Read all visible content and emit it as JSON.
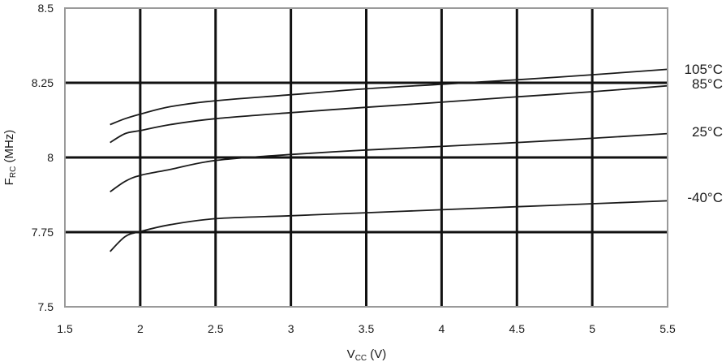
{
  "chart_data": {
    "type": "line",
    "title": "",
    "xlabel": {
      "main": "V",
      "sub": "CC",
      "suffix": " (V)"
    },
    "ylabel": {
      "main": "F",
      "sub": "RC",
      "suffix": " (MHz)"
    },
    "xlim": [
      1.5,
      5.5
    ],
    "ylim": [
      7.5,
      8.5
    ],
    "xticks": [
      1.5,
      2,
      2.5,
      3,
      3.5,
      4,
      4.5,
      5,
      5.5
    ],
    "yticks": [
      7.5,
      7.75,
      8,
      8.25,
      8.5
    ],
    "xtick_labels": [
      "1.5",
      "2",
      "2.5",
      "3",
      "3.5",
      "4",
      "4.5",
      "5",
      "5.5"
    ],
    "ytick_labels": [
      "7.5",
      "7.75",
      "8",
      "8.25",
      "8.5"
    ],
    "grid": true,
    "series": [
      {
        "name": "105°C",
        "x": [
          1.8,
          1.9,
          2.0,
          2.2,
          2.5,
          3.0,
          3.5,
          4.0,
          4.5,
          5.0,
          5.5
        ],
        "y": [
          8.11,
          8.13,
          8.145,
          8.17,
          8.19,
          8.21,
          8.23,
          8.245,
          8.26,
          8.277,
          8.295
        ]
      },
      {
        "name": "85°C",
        "x": [
          1.8,
          1.9,
          2.0,
          2.2,
          2.5,
          3.0,
          3.5,
          4.0,
          4.5,
          5.0,
          5.5
        ],
        "y": [
          8.05,
          8.08,
          8.09,
          8.11,
          8.13,
          8.15,
          8.168,
          8.185,
          8.203,
          8.22,
          8.24
        ]
      },
      {
        "name": "25°C",
        "x": [
          1.8,
          1.9,
          2.0,
          2.2,
          2.5,
          3.0,
          3.5,
          4.0,
          4.5,
          5.0,
          5.5
        ],
        "y": [
          7.885,
          7.92,
          7.94,
          7.96,
          7.99,
          8.01,
          8.025,
          8.037,
          8.05,
          8.064,
          8.08
        ]
      },
      {
        "name": "-40°C",
        "x": [
          1.8,
          1.9,
          2.0,
          2.2,
          2.5,
          3.0,
          3.5,
          4.0,
          4.5,
          5.0,
          5.5
        ],
        "y": [
          7.685,
          7.735,
          7.752,
          7.775,
          7.795,
          7.805,
          7.815,
          7.825,
          7.835,
          7.845,
          7.855
        ]
      }
    ]
  }
}
